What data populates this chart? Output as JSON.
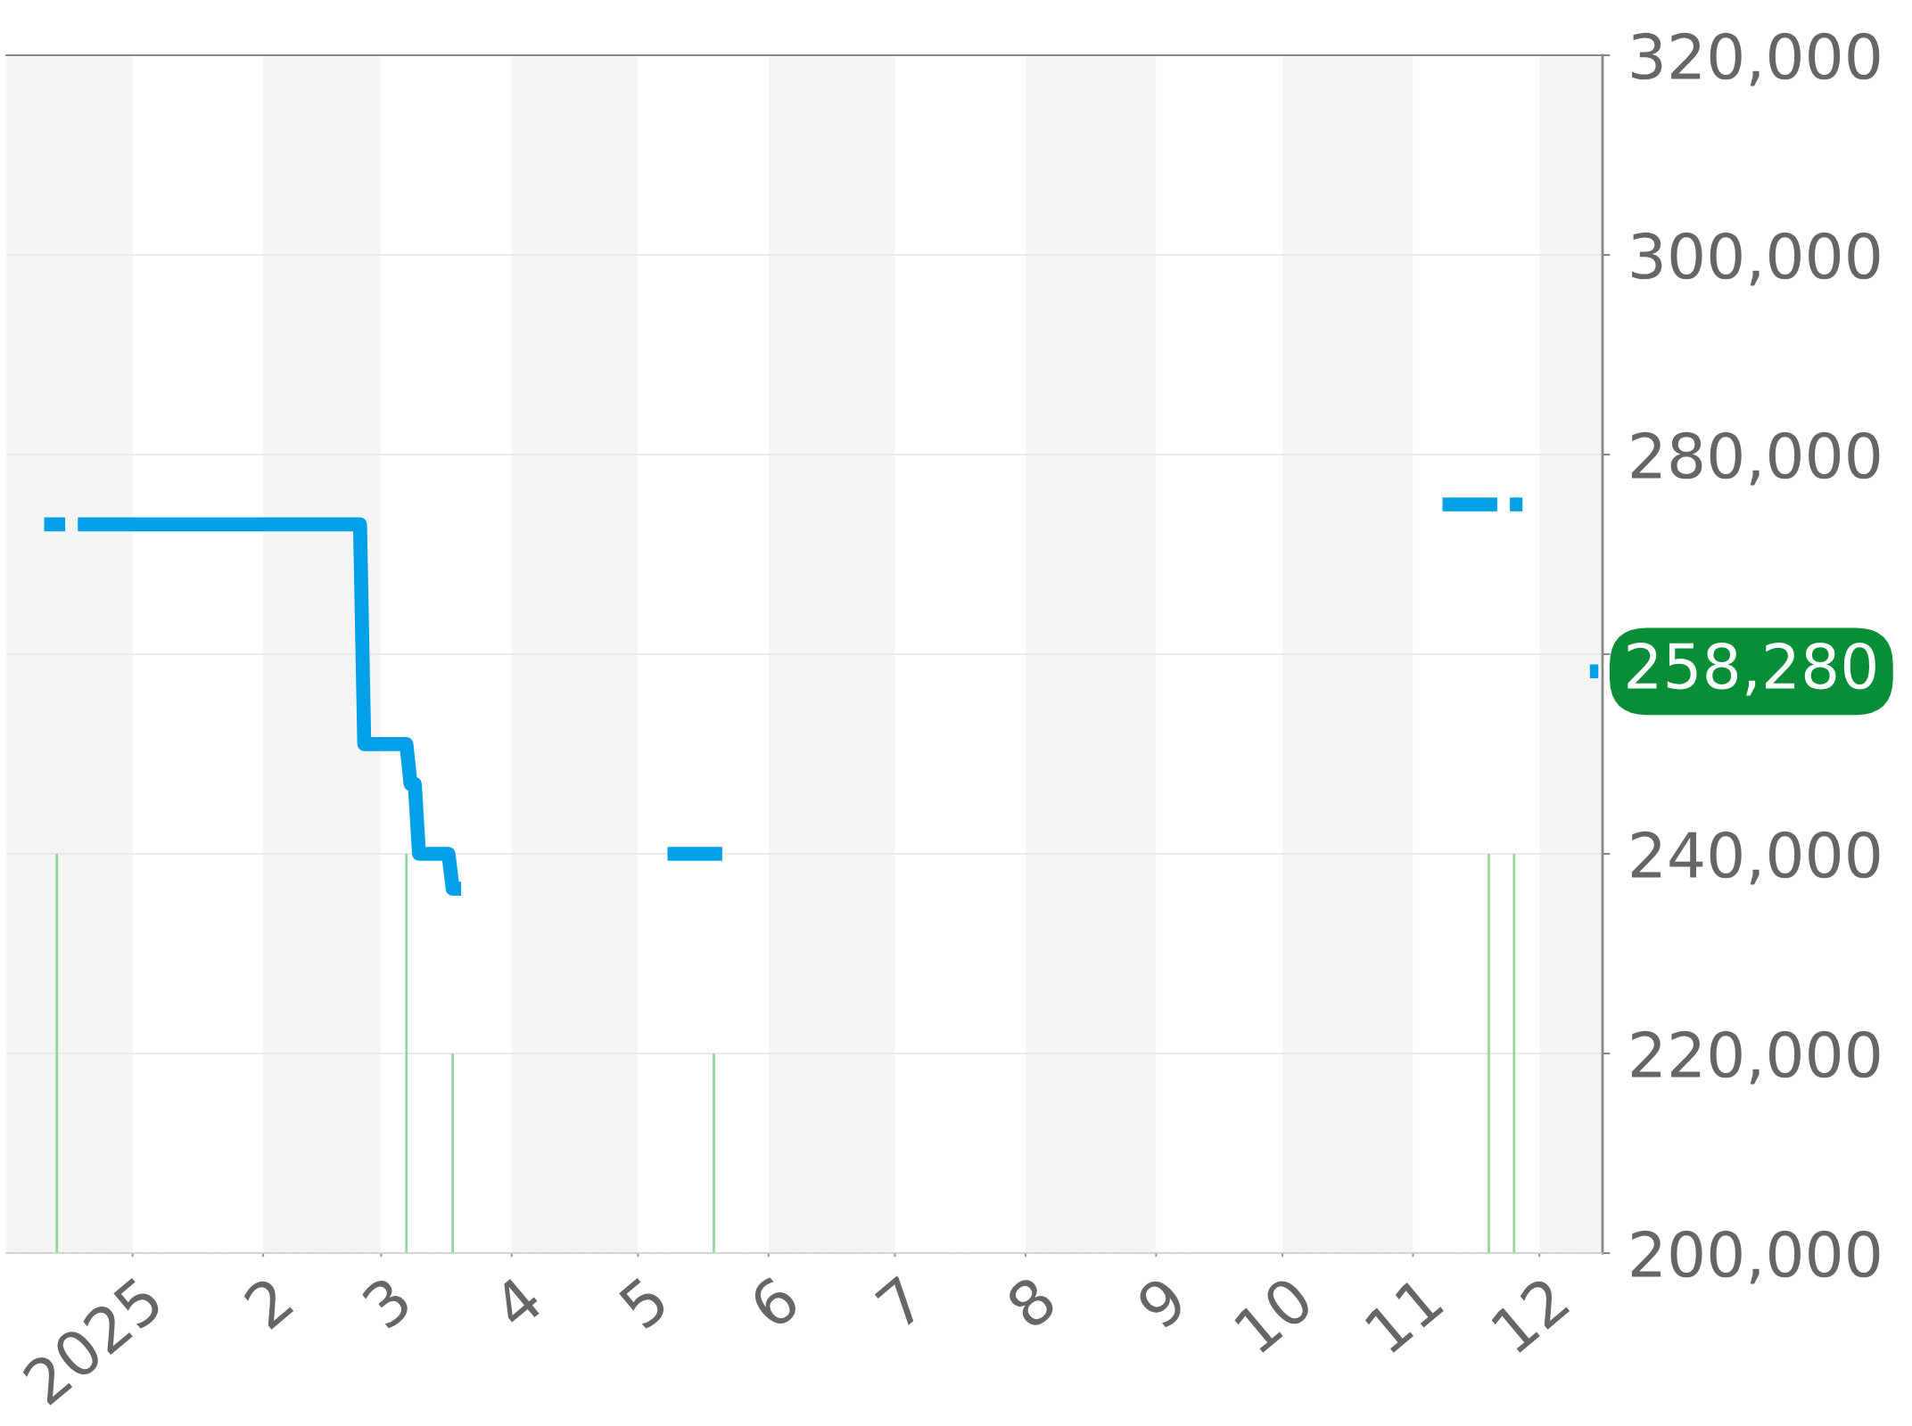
{
  "chart_data": {
    "type": "line",
    "xlim": [
      "2024-12-02",
      "2025-12-16"
    ],
    "xticks": [
      {
        "value": "2025-01-01",
        "label": "2025"
      },
      {
        "value": "2025-02-01",
        "label": "2"
      },
      {
        "value": "2025-03-01",
        "label": "3"
      },
      {
        "value": "2025-04-01",
        "label": "4"
      },
      {
        "value": "2025-05-01",
        "label": "5"
      },
      {
        "value": "2025-06-01",
        "label": "6"
      },
      {
        "value": "2025-07-01",
        "label": "7"
      },
      {
        "value": "2025-08-01",
        "label": "8"
      },
      {
        "value": "2025-09-01",
        "label": "9"
      },
      {
        "value": "2025-10-01",
        "label": "10"
      },
      {
        "value": "2025-11-01",
        "label": "11"
      },
      {
        "value": "2025-12-01",
        "label": "12"
      }
    ],
    "ylim": [
      200000,
      320000
    ],
    "yticks": [
      {
        "value": 200000,
        "label": "200,000"
      },
      {
        "value": 220000,
        "label": "220,000"
      },
      {
        "value": 240000,
        "label": "240,000"
      },
      {
        "value": 260000,
        "label": null
      },
      {
        "value": 280000,
        "label": "280,000"
      },
      {
        "value": 300000,
        "label": "300,000"
      },
      {
        "value": 320000,
        "label": "320,000"
      }
    ],
    "grid": "y",
    "line_style": "solid",
    "bands": [
      {
        "axis": "x",
        "from": "2024-12-02",
        "to": "2025-01-01",
        "color": "#f5f5f5"
      },
      {
        "axis": "x",
        "from": "2025-02-01",
        "to": "2025-03-01",
        "color": "#f5f5f5"
      },
      {
        "axis": "x",
        "from": "2025-04-01",
        "to": "2025-05-01",
        "color": "#f5f5f5"
      },
      {
        "axis": "x",
        "from": "2025-06-01",
        "to": "2025-07-01",
        "color": "#f5f5f5"
      },
      {
        "axis": "x",
        "from": "2025-08-01",
        "to": "2025-09-01",
        "color": "#f5f5f5"
      },
      {
        "axis": "x",
        "from": "2025-10-01",
        "to": "2025-11-01",
        "color": "#f5f5f5"
      },
      {
        "axis": "x",
        "from": "2025-12-01",
        "to": "2025-12-16",
        "color": "#f5f5f5"
      }
    ],
    "ref_lines": [
      {
        "axis": "y",
        "value": 200000,
        "color": "#a8dcb0",
        "line_style": "dashed"
      }
    ],
    "series": [
      {
        "color": "#00a0e9",
        "x": [
          "2024-12-11",
          "2024-12-16",
          "2024-12-17",
          "2024-12-19",
          "2025-02-24",
          "2025-02-25",
          "2025-03-07",
          "2025-03-08",
          "2025-03-09",
          "2025-03-10",
          "2025-03-17",
          "2025-03-18",
          "2025-03-20",
          "2025-03-21",
          "2025-05-08",
          "2025-05-21",
          "2025-05-22",
          "2025-11-08",
          "2025-11-21",
          "2025-11-22",
          "2025-11-24",
          "2025-11-27",
          "2025-11-28",
          "2025-12-13",
          "2025-12-15"
        ],
        "values": [
          273000,
          273000,
          null,
          273000,
          273000,
          251000,
          251000,
          247000,
          247000,
          240000,
          240000,
          236500,
          236500,
          null,
          240000,
          240000,
          null,
          275000,
          275000,
          null,
          275000,
          275000,
          null,
          258280,
          258280
        ]
      },
      {
        "type": "bar",
        "color": "#95d89f",
        "x": [
          "2024-12-14",
          "2025-03-07",
          "2025-03-18",
          "2025-05-19",
          "2025-11-19",
          "2025-11-25"
        ],
        "base": [
          200000,
          200000,
          200000,
          200000,
          200000,
          200000
        ],
        "values": [
          40000,
          40000,
          20000,
          20000,
          40000,
          40000
        ]
      }
    ],
    "annotations": [
      {
        "text": "258,280",
        "x": "2025-12-15",
        "y": 258280
      }
    ]
  }
}
